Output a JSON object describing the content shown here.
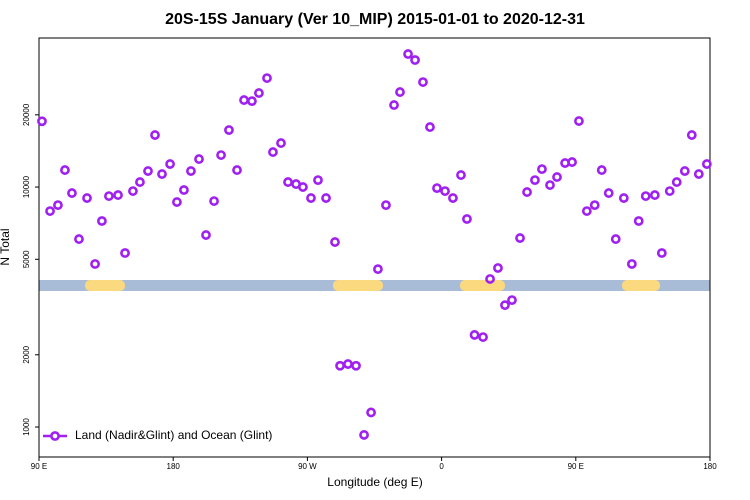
{
  "chart_data": {
    "type": "scatter",
    "title": "20S-15S January (Ver 10_MIP)   2015-01-01 to 2020-12-31",
    "x_label": "Longitude (deg E)",
    "y_label": "N Total",
    "log_y": true,
    "legend_position": "bottom-left",
    "xlim": [
      90,
      540
    ],
    "xticks": [
      {
        "value": 90,
        "label": "90 E"
      },
      180,
      {
        "value": 270,
        "label": "90 W"
      },
      {
        "value": 360,
        "label": "0"
      },
      {
        "value": 450,
        "label": "90 E"
      },
      180
    ],
    "ylim": [
      750,
      41800
    ],
    "yticks": [
      1000,
      2000,
      5000,
      10000,
      20000
    ],
    "series": [
      {
        "name": "Land (Nadir&Glint) and Ocean (Glint)",
        "color": "#a020f0",
        "x": [
          92.0,
          97.4,
          102.7,
          107.4,
          112.1,
          116.8,
          122.2,
          127.6,
          132.2,
          136.9,
          143.0,
          147.7,
          153.0,
          157.7,
          163.1,
          167.8,
          172.5,
          177.9,
          182.5,
          187.2,
          191.9,
          197.3,
          202.0,
          207.4,
          212.1,
          217.4,
          222.8,
          227.5,
          232.8,
          237.5,
          242.9,
          246.9,
          252.3,
          257.0,
          262.4,
          267.0,
          272.4,
          277.1,
          282.5,
          288.5,
          291.9,
          297.2,
          302.6,
          308.0,
          312.7,
          317.3,
          322.7,
          328.1,
          332.1,
          337.5,
          342.2,
          347.5,
          352.2,
          356.9,
          362.3,
          367.6,
          373.0,
          377.0,
          382.1,
          387.8,
          392.5,
          397.8,
          402.5,
          407.2,
          412.6,
          417.3,
          422.6,
          427.3,
          432.7,
          437.4,
          442.8,
          447.5,
          452.1,
          457.4,
          462.7,
          467.4,
          472.1,
          476.8,
          482.2,
          487.6,
          492.2,
          496.9,
          503.0,
          507.7,
          513.0,
          517.7,
          523.1,
          527.8,
          532.5,
          537.9
        ],
        "values": [
          18800,
          7940,
          8410,
          11770,
          9440,
          6070,
          9000,
          4780,
          7220,
          9170,
          9260,
          5310,
          9620,
          10490,
          11660,
          16470,
          11330,
          12470,
          8660,
          9720,
          11660,
          13080,
          6310,
          8740,
          13590,
          17280,
          11770,
          23040,
          22810,
          24650,
          28450,
          13990,
          15250,
          10490,
          10290,
          10000,
          9000,
          10690,
          9000,
          5900,
          1800,
          1830,
          1800,
          927,
          1150,
          4550,
          8410,
          21970,
          24880,
          35840,
          33840,
          27380,
          17780,
          9900,
          9620,
          9000,
          11220,
          7360,
          2420,
          2370,
          4140,
          4600,
          3220,
          3380,
          6130,
          9530,
          10690,
          11880,
          10190,
          11010,
          12590,
          12710,
          18840,
          7940,
          8410,
          11770,
          9440,
          6070,
          9000,
          4780,
          7220,
          9170,
          9260,
          5310,
          9620,
          10490,
          11660,
          16470,
          11330,
          12470
        ]
      }
    ]
  }
}
